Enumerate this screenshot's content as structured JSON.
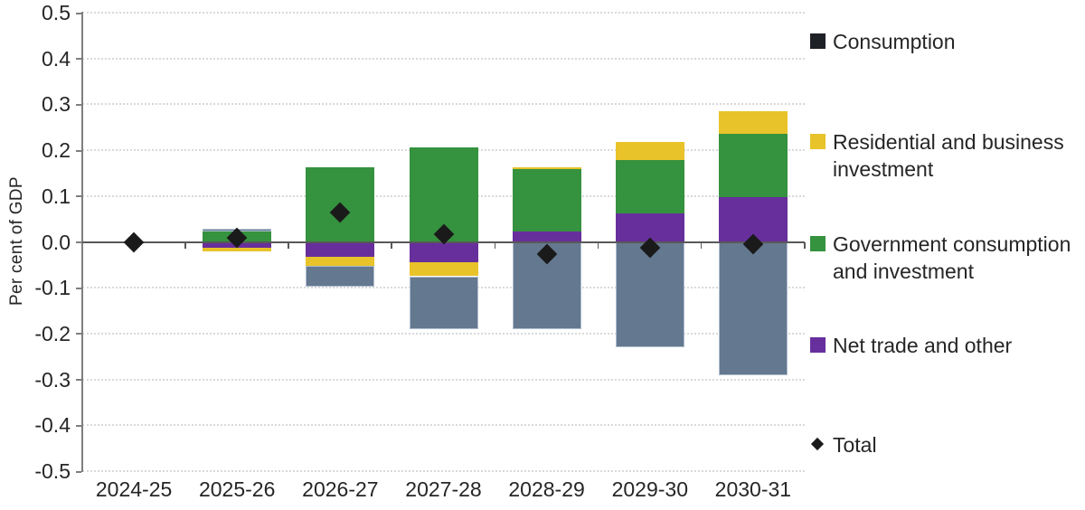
{
  "chart_data": {
    "type": "bar",
    "subtype": "stacked-bars-with-total-markers",
    "title": "",
    "xlabel": "",
    "ylabel": "Per cent of GDP",
    "ylim": [
      -0.5,
      0.5
    ],
    "ytick_step": 0.1,
    "ytick_labels": [
      "0.5",
      "0.4",
      "0.3",
      "0.2",
      "0.1",
      "0.0",
      "-0.1",
      "-0.2",
      "-0.3",
      "-0.4",
      "-0.5"
    ],
    "grid": "horizontal-dotted",
    "legend_position": "right",
    "categories": [
      "2024-25",
      "2025-26",
      "2026-27",
      "2027-28",
      "2028-29",
      "2029-30",
      "2030-31"
    ],
    "series": [
      {
        "name": "Consumption",
        "color": "#64788f",
        "legend_color": "#1e2126",
        "border_color": "#aebdce",
        "values": [
          0,
          0.006,
          -0.045,
          -0.115,
          -0.19,
          -0.23,
          -0.29
        ]
      },
      {
        "name": "Residential and business investment",
        "color": "#e8c32a",
        "values": [
          0,
          -0.008,
          -0.02,
          -0.03,
          0.005,
          0.04,
          0.05
        ]
      },
      {
        "name": "Government consumption and investment",
        "color": "#35923e",
        "values": [
          0,
          0.022,
          0.163,
          0.207,
          0.136,
          0.115,
          0.138
        ]
      },
      {
        "name": "Net trade and other",
        "color": "#672f9c",
        "values": [
          0,
          -0.012,
          -0.033,
          -0.045,
          0.022,
          0.063,
          0.098
        ]
      }
    ],
    "markers": {
      "name": "Total",
      "color": "#1a1a1a",
      "values": [
        0,
        0.008,
        0.065,
        0.017,
        -0.027,
        -0.012,
        -0.004
      ]
    },
    "colors": {
      "zero_line": "#595959",
      "axis_line": "#7f7f7f",
      "gridline": "#d9d9d9",
      "text": "#262626"
    }
  }
}
